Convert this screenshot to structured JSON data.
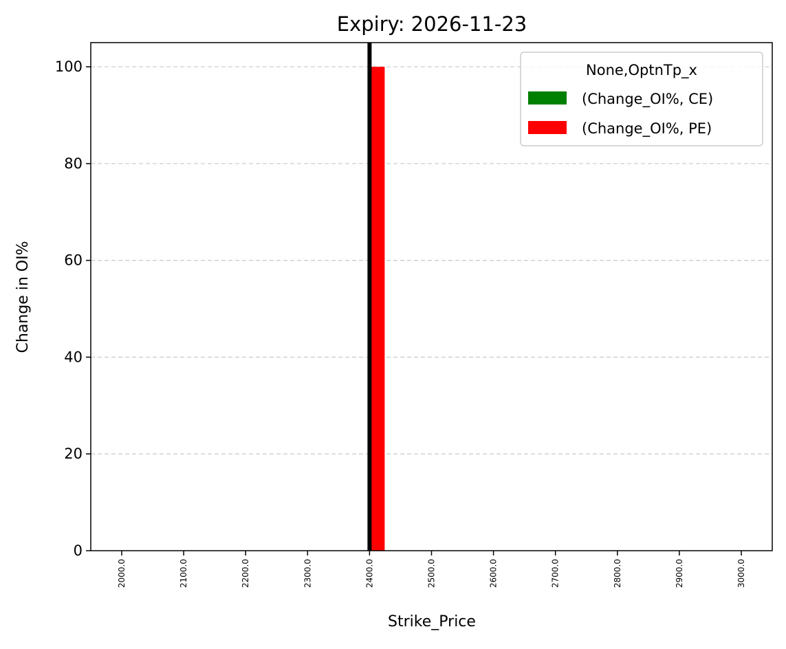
{
  "chart_data": {
    "type": "bar",
    "title": "Expiry: 2026-11-23",
    "xlabel": "Strike_Price",
    "ylabel": "Change in OI%",
    "categories": [
      "2000.0",
      "2100.0",
      "2200.0",
      "2300.0",
      "2400.0",
      "2500.0",
      "2600.0",
      "2700.0",
      "2800.0",
      "2900.0",
      "3000.0"
    ],
    "series": [
      {
        "name": "(Change_OI%, CE)",
        "color": "#008000",
        "values": [
          0,
          0,
          0,
          0,
          0,
          0,
          0,
          0,
          0,
          0,
          0
        ]
      },
      {
        "name": "(Change_OI%, PE)",
        "color": "#ff0000",
        "values": [
          0,
          0,
          0,
          0,
          100,
          0,
          0,
          0,
          0,
          0,
          0
        ]
      }
    ],
    "ylim": [
      0,
      105
    ],
    "yticks": [
      0,
      20,
      40,
      60,
      80,
      100
    ],
    "grid": {
      "axis": "y",
      "style": "dashed"
    },
    "vline": {
      "category": "2400.0",
      "color": "#000000"
    },
    "legend": {
      "title": "None,OptnTp_x",
      "position": "top-right"
    }
  }
}
